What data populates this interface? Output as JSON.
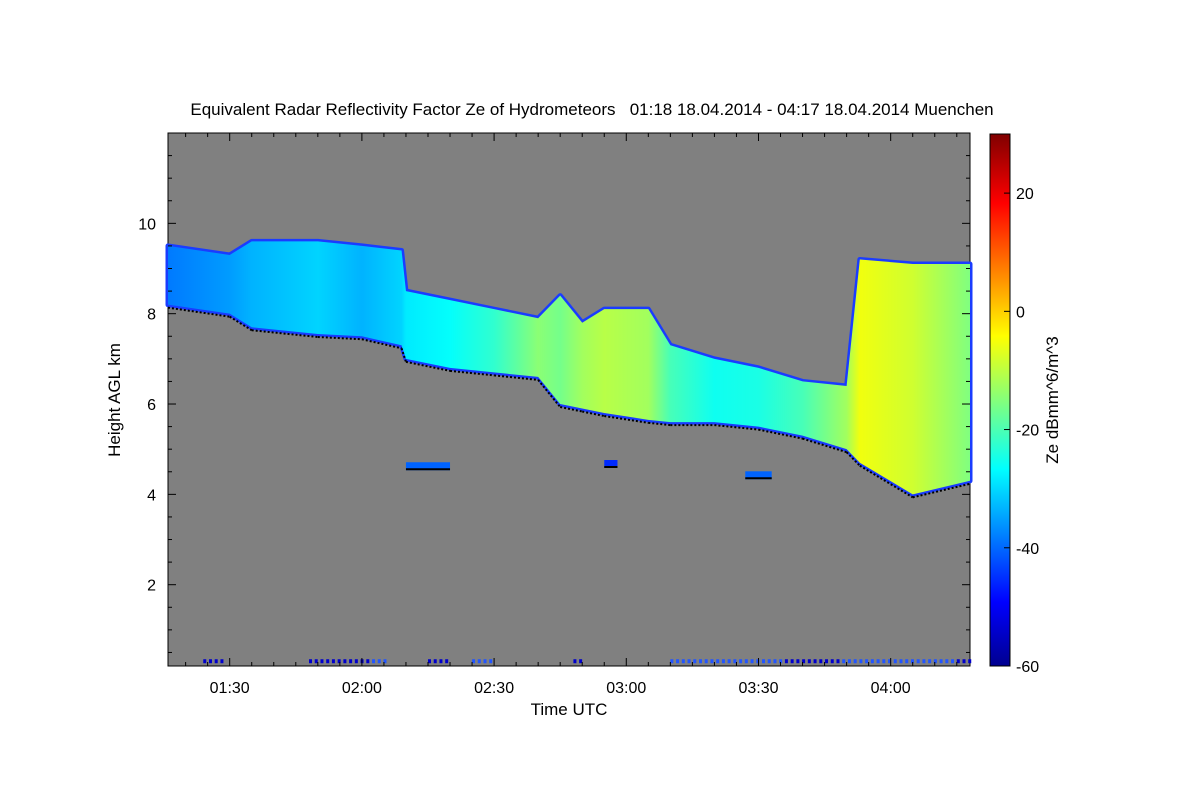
{
  "chart_data": {
    "type": "heatmap",
    "title": "Equivalent Radar Reflectivity Factor Ze of Hydrometeors   01:18 18.04.2014 - 04:17 18.04.2014 Muenchen",
    "xlabel": "Time UTC",
    "ylabel": "Height AGL km",
    "colorbar_label": "Ze dBmm^6/m^3",
    "xlim_minutes": [
      76,
      258
    ],
    "ylim": [
      0.2,
      12.0
    ],
    "x_ticks": [
      {
        "t": 90,
        "label": "01:30"
      },
      {
        "t": 120,
        "label": "02:00"
      },
      {
        "t": 150,
        "label": "02:30"
      },
      {
        "t": 180,
        "label": "03:00"
      },
      {
        "t": 210,
        "label": "03:30"
      },
      {
        "t": 240,
        "label": "04:00"
      }
    ],
    "y_ticks": [
      {
        "v": 2,
        "label": "2"
      },
      {
        "v": 4,
        "label": "4"
      },
      {
        "v": 6,
        "label": "6"
      },
      {
        "v": 8,
        "label": "8"
      },
      {
        "v": 10,
        "label": "10"
      }
    ],
    "colorbar_range": [
      -60,
      30
    ],
    "colorbar_ticks": [
      {
        "v": 20,
        "label": "20"
      },
      {
        "v": 0,
        "label": "0"
      },
      {
        "v": -20,
        "label": "-20"
      },
      {
        "v": -40,
        "label": "-40"
      },
      {
        "v": -60,
        "label": "-60"
      }
    ],
    "background_color": "#808080",
    "cloud_layer": {
      "time_minutes": [
        76,
        90,
        95,
        110,
        120,
        129,
        130,
        140,
        150,
        160,
        165,
        170,
        175,
        185,
        190,
        200,
        210,
        220,
        230,
        233,
        245,
        258
      ],
      "top_km": [
        9.5,
        9.3,
        9.6,
        9.6,
        9.5,
        9.4,
        8.5,
        8.3,
        8.1,
        7.9,
        8.4,
        7.8,
        8.1,
        8.1,
        7.3,
        7.0,
        6.8,
        6.5,
        6.4,
        9.2,
        9.1,
        9.1
      ],
      "base_km": [
        8.2,
        8.0,
        7.7,
        7.55,
        7.5,
        7.3,
        7.0,
        6.8,
        6.7,
        6.6,
        6.0,
        5.9,
        5.8,
        5.65,
        5.6,
        5.6,
        5.5,
        5.3,
        5.0,
        4.7,
        4.0,
        4.3
      ],
      "ze_dbz": [
        -38,
        -35,
        -33,
        -30,
        -33,
        -30,
        -28,
        -26,
        -22,
        -14,
        -16,
        -12,
        -10,
        -12,
        -20,
        -25,
        -24,
        -20,
        -12,
        -5,
        -8,
        -15
      ]
    },
    "isolated_echoes": [
      {
        "t0": 130,
        "t1": 140,
        "h": 4.6,
        "ze_dbz": -40
      },
      {
        "t0": 175,
        "t1": 178,
        "h": 4.65,
        "ze_dbz": -45
      },
      {
        "t0": 207,
        "t1": 213,
        "h": 4.4,
        "ze_dbz": -40
      }
    ],
    "near_surface_echo_ranges": [
      [
        84,
        88
      ],
      [
        108,
        125
      ],
      [
        135,
        140
      ],
      [
        145,
        150
      ],
      [
        168,
        170
      ],
      [
        190,
        258
      ]
    ]
  }
}
